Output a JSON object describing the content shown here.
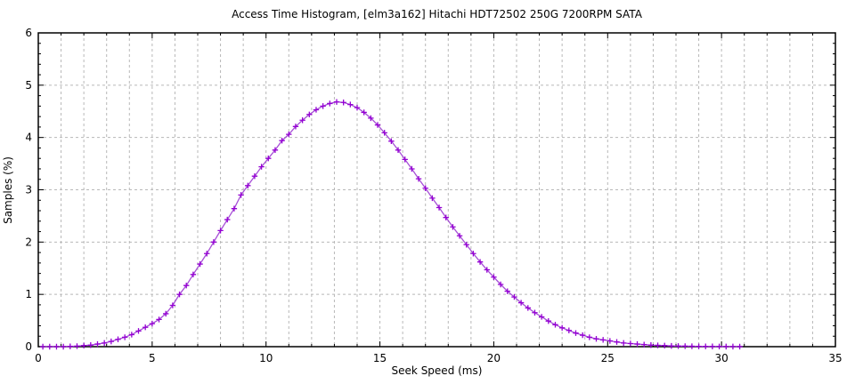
{
  "header": {
    "title": "Access Time Histogram, [elm3a162] Hitachi HDT72502 250G 7200RPM SATA"
  },
  "colors": {
    "series": "#9400d3",
    "series_line": "#a64fd6",
    "grid": "#b8b8b8",
    "axis": "#000000",
    "background": "#ffffff"
  },
  "chart_data": {
    "type": "line",
    "title": "Access Time Histogram, [elm3a162] Hitachi HDT72502 250G 7200RPM SATA",
    "xlabel": "Seek Speed (ms)",
    "ylabel": "Samples (%)",
    "xlim": [
      0,
      35
    ],
    "ylim": [
      0,
      6
    ],
    "x_major_ticks": [
      0,
      5,
      10,
      15,
      20,
      25,
      30,
      35
    ],
    "y_major_ticks": [
      0,
      1,
      2,
      3,
      4,
      5,
      6
    ],
    "x_minor_step": 1,
    "y_minor_step": 0.2,
    "grid": "dashed gray: vertical every 1 ms, horizontal every 1 %",
    "legend_position": "none",
    "marker": "plus",
    "series": [
      {
        "name": "samples",
        "color": "#9400d3",
        "x": [
          0.2,
          0.5,
          0.8,
          1.1,
          1.4,
          1.7,
          2.0,
          2.3,
          2.6,
          2.9,
          3.2,
          3.5,
          3.8,
          4.1,
          4.4,
          4.7,
          5.0,
          5.3,
          5.6,
          5.9,
          6.2,
          6.5,
          6.8,
          7.1,
          7.4,
          7.7,
          8.0,
          8.3,
          8.6,
          8.9,
          9.2,
          9.5,
          9.8,
          10.1,
          10.4,
          10.7,
          11.0,
          11.3,
          11.6,
          11.9,
          12.2,
          12.5,
          12.8,
          13.1,
          13.4,
          13.7,
          14.0,
          14.3,
          14.6,
          14.9,
          15.2,
          15.5,
          15.8,
          16.1,
          16.4,
          16.7,
          17.0,
          17.3,
          17.6,
          17.9,
          18.2,
          18.5,
          18.8,
          19.1,
          19.4,
          19.7,
          20.0,
          20.3,
          20.6,
          20.9,
          21.2,
          21.5,
          21.8,
          22.1,
          22.4,
          22.7,
          23.0,
          23.3,
          23.6,
          23.9,
          24.2,
          24.5,
          24.8,
          25.1,
          25.4,
          25.7,
          26.0,
          26.3,
          26.6,
          26.9,
          27.2,
          27.5,
          27.8,
          28.1,
          28.4,
          28.7,
          29.0,
          29.3,
          29.6,
          29.9,
          30.2,
          30.5,
          30.8
        ],
        "y": [
          0,
          0,
          0,
          0,
          0.005,
          0.01,
          0.02,
          0.03,
          0.05,
          0.07,
          0.1,
          0.14,
          0.18,
          0.23,
          0.3,
          0.37,
          0.44,
          0.52,
          0.63,
          0.79,
          1.0,
          1.17,
          1.38,
          1.58,
          1.78,
          2.0,
          2.22,
          2.43,
          2.64,
          2.9,
          3.08,
          3.26,
          3.44,
          3.6,
          3.76,
          3.94,
          4.06,
          4.21,
          4.33,
          4.44,
          4.53,
          4.6,
          4.65,
          4.68,
          4.67,
          4.63,
          4.57,
          4.48,
          4.37,
          4.24,
          4.09,
          3.93,
          3.76,
          3.58,
          3.4,
          3.21,
          3.03,
          2.84,
          2.66,
          2.47,
          2.29,
          2.12,
          1.95,
          1.78,
          1.62,
          1.47,
          1.33,
          1.19,
          1.06,
          0.95,
          0.84,
          0.74,
          0.65,
          0.57,
          0.49,
          0.42,
          0.36,
          0.31,
          0.26,
          0.22,
          0.18,
          0.15,
          0.13,
          0.11,
          0.09,
          0.07,
          0.06,
          0.05,
          0.04,
          0.03,
          0.025,
          0.02,
          0.015,
          0.012,
          0.01,
          0.008,
          0.006,
          0.005,
          0.004,
          0.003,
          0.002,
          0.002,
          0.001
        ]
      }
    ]
  }
}
